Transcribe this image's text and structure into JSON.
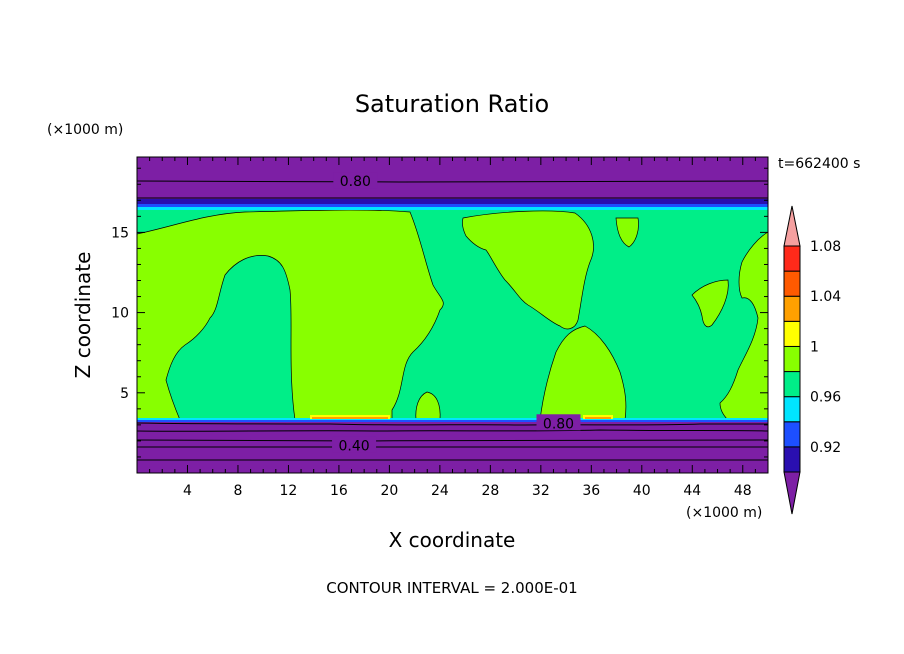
{
  "chart_data": {
    "type": "heatmap",
    "title": "Saturation Ratio",
    "time_label": "t=662400 s",
    "xlabel": "X coordinate",
    "ylabel": "Z coordinate",
    "x_unit": "(×1000 m)",
    "y_unit": "(×1000 m)",
    "xlim": [
      0,
      50
    ],
    "ylim": [
      0,
      19.7
    ],
    "x_ticks": [
      4,
      8,
      12,
      16,
      20,
      24,
      28,
      32,
      36,
      40,
      44,
      48
    ],
    "y_ticks": [
      5,
      10,
      15
    ],
    "footer": "CONTOUR INTERVAL = 2.000E-01",
    "contour_labels": [
      {
        "text": "0.80",
        "x": 17.3,
        "y": 18.2
      },
      {
        "text": "0.80",
        "x": 33.4,
        "y": 3.1
      },
      {
        "text": "0.40",
        "x": 17.2,
        "y": 1.7
      }
    ],
    "colorbar": {
      "bands": [
        {
          "lower": null,
          "upper": 0.92,
          "color": "#7d1fa5"
        },
        {
          "lower": 0.92,
          "upper": 0.94,
          "color": "#2a0fb0"
        },
        {
          "lower": 0.94,
          "upper": 0.96,
          "color": "#1d4fff"
        },
        {
          "lower": 0.96,
          "upper": 0.98,
          "color": "#00e5ff"
        },
        {
          "lower": 0.98,
          "upper": 1.0,
          "color": "#00ee88"
        },
        {
          "lower": 1.0,
          "upper": 1.02,
          "color": "#88ff00"
        },
        {
          "lower": 1.02,
          "upper": 1.04,
          "color": "#ffff00"
        },
        {
          "lower": 1.04,
          "upper": 1.06,
          "color": "#ffa000"
        },
        {
          "lower": 1.06,
          "upper": 1.08,
          "color": "#ff5a00"
        },
        {
          "lower": 1.08,
          "upper": 1.1,
          "color": "#ff2a1a"
        },
        {
          "lower": 1.1,
          "upper": null,
          "color": "#f5a0a0"
        }
      ],
      "tick_labels": [
        "0.92",
        "0.96",
        "1",
        "1.04",
        "1.08"
      ]
    }
  }
}
